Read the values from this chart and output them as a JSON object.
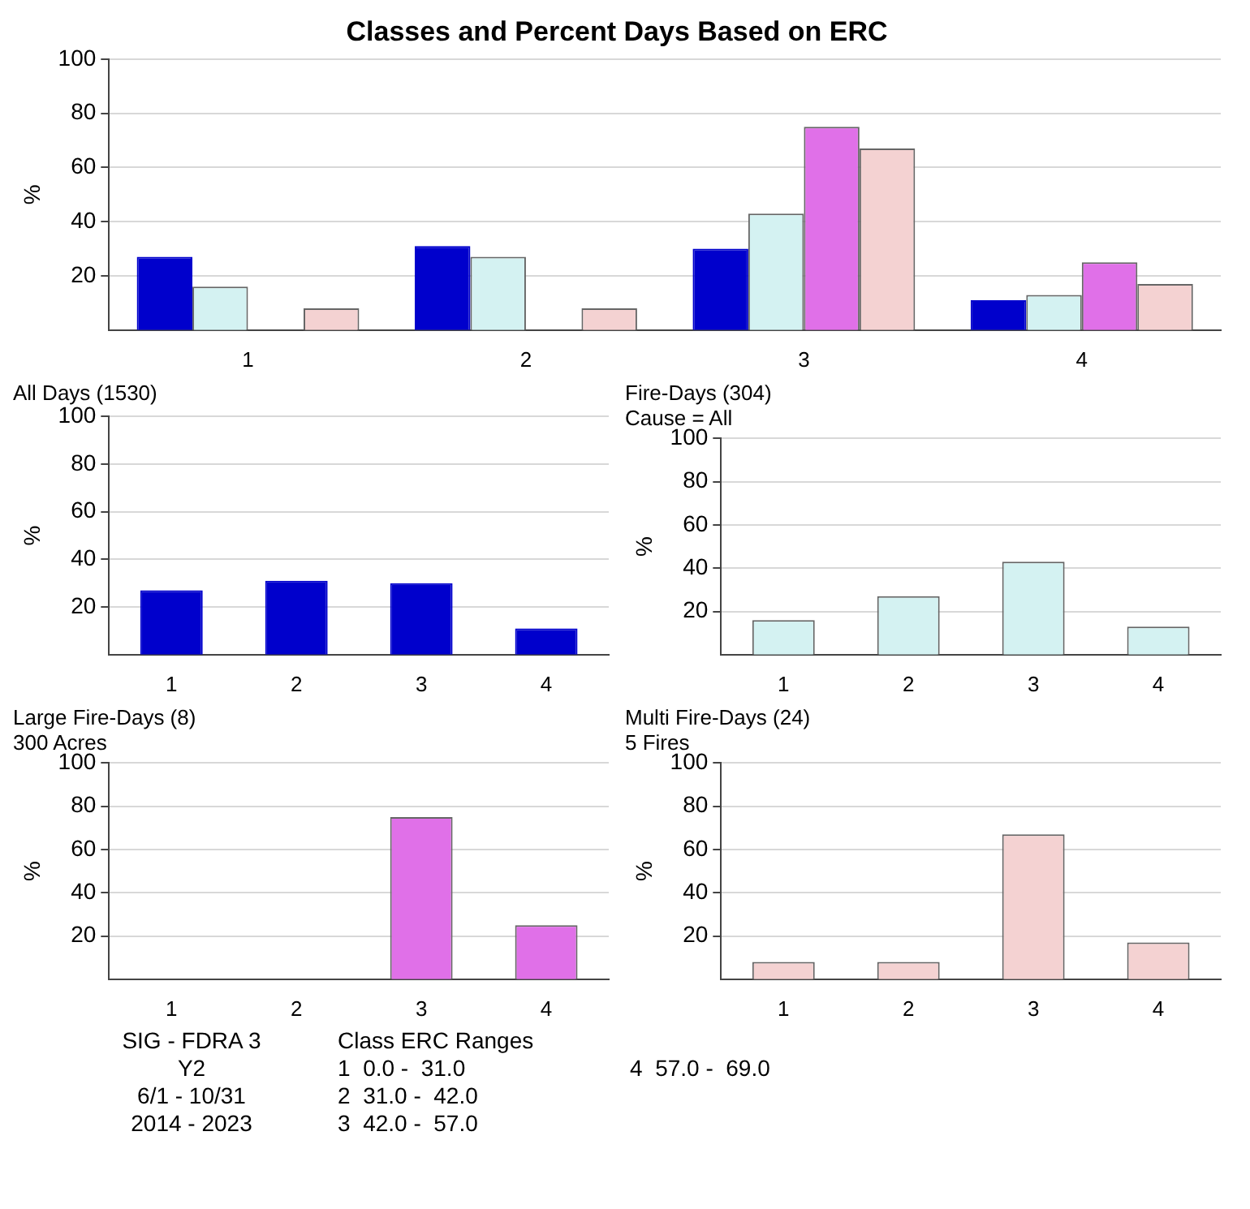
{
  "chart_data": [
    {
      "type": "bar",
      "title": "Classes and Percent Days Based on ERC",
      "ylabel": "%",
      "categories": [
        "1",
        "2",
        "3",
        "4"
      ],
      "ylim": [
        0,
        100
      ],
      "yticks": [
        20,
        40,
        60,
        80,
        100
      ],
      "grid": "y",
      "legend": false,
      "series": [
        {
          "color": "#0000cc",
          "values": [
            27,
            31,
            30,
            11
          ]
        },
        {
          "color": "#d4f2f2",
          "values": [
            16,
            27,
            43,
            13
          ]
        },
        {
          "color": "#e070e8",
          "values": [
            0,
            0,
            75,
            25
          ]
        },
        {
          "color": "#f4d2d2",
          "values": [
            8,
            8,
            67,
            17
          ]
        }
      ]
    },
    {
      "type": "bar",
      "title": "All Days (1530)",
      "ylabel": "%",
      "categories": [
        "1",
        "2",
        "3",
        "4"
      ],
      "ylim": [
        0,
        100
      ],
      "yticks": [
        20,
        40,
        60,
        80,
        100
      ],
      "grid": "y",
      "legend": false,
      "series": [
        {
          "color": "#0000cc",
          "values": [
            27,
            31,
            30,
            11
          ]
        }
      ]
    },
    {
      "type": "bar",
      "title": "Fire-Days (304)",
      "subtitle": "Cause = All",
      "ylabel": "%",
      "categories": [
        "1",
        "2",
        "3",
        "4"
      ],
      "ylim": [
        0,
        100
      ],
      "yticks": [
        20,
        40,
        60,
        80,
        100
      ],
      "grid": "y",
      "legend": false,
      "series": [
        {
          "color": "#d4f2f2",
          "values": [
            16,
            27,
            43,
            13
          ]
        }
      ]
    },
    {
      "type": "bar",
      "title": "Large Fire-Days (8)",
      "subtitle": "300 Acres",
      "ylabel": "%",
      "categories": [
        "1",
        "2",
        "3",
        "4"
      ],
      "ylim": [
        0,
        100
      ],
      "yticks": [
        20,
        40,
        60,
        80,
        100
      ],
      "grid": "y",
      "legend": false,
      "series": [
        {
          "color": "#e070e8",
          "values": [
            0,
            0,
            75,
            25
          ]
        }
      ]
    },
    {
      "type": "bar",
      "title": "Multi Fire-Days (24)",
      "subtitle": "5 Fires",
      "ylabel": "%",
      "categories": [
        "1",
        "2",
        "3",
        "4"
      ],
      "ylim": [
        0,
        100
      ],
      "yticks": [
        20,
        40,
        60,
        80,
        100
      ],
      "grid": "y",
      "legend": false,
      "series": [
        {
          "color": "#f4d2d2",
          "values": [
            8,
            8,
            67,
            17
          ]
        }
      ],
      "annotations": [
        "SIG - FDRA 3",
        "Y2",
        "6/1 - 10/31",
        "2014 - 2023",
        "Class ERC Ranges",
        "1  0.0 -  31.0",
        "2  31.0 -  42.0",
        "3  42.0 -  57.0",
        "4  57.0 -  69.0"
      ]
    }
  ]
}
